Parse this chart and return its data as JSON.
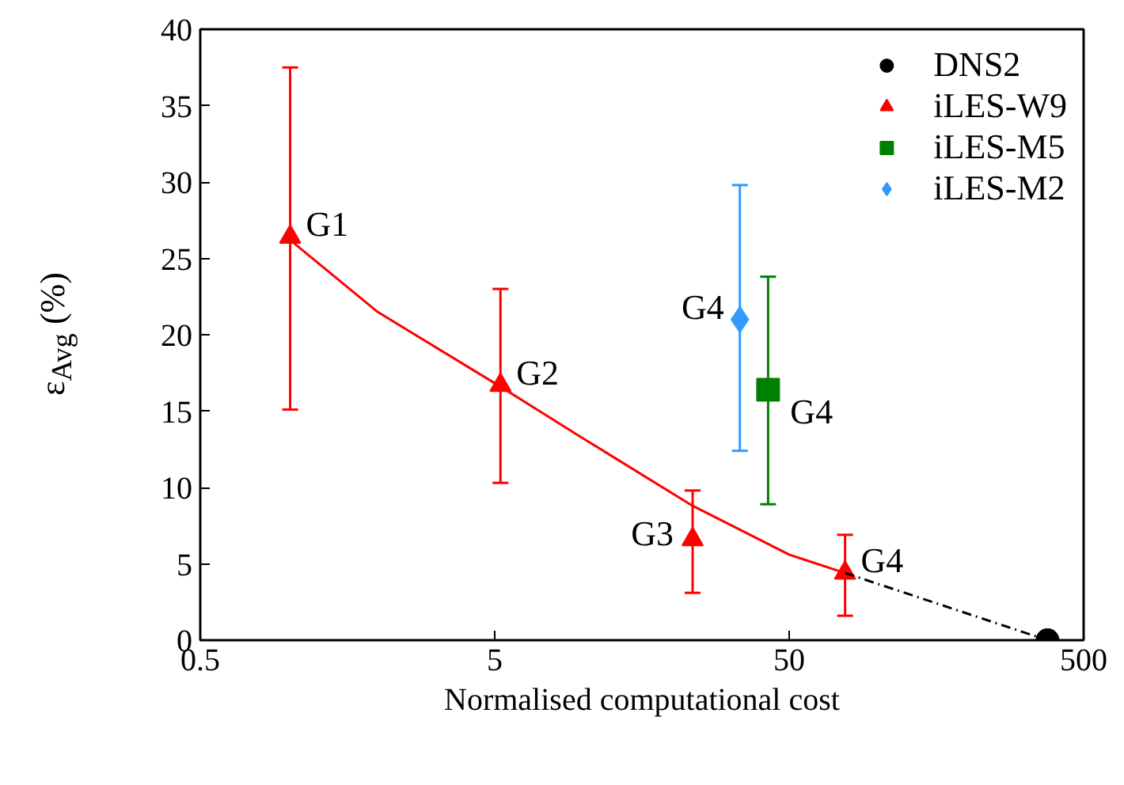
{
  "chart_data": {
    "type": "scatter",
    "xlabel": "Normalised computational cost",
    "ylabel": "ε$_{Avg}$ (%)",
    "log": "x",
    "xlim": [
      0.5,
      500
    ],
    "xticks": [
      0.5,
      5,
      50,
      500
    ],
    "ylim": [
      0,
      40
    ],
    "yticks": [
      0,
      5,
      10,
      15,
      20,
      25,
      30,
      35,
      40
    ],
    "legend": "top right",
    "series": [
      {
        "name": "DNS2",
        "marker": "circle",
        "color": "#000000",
        "x": [
          377
        ],
        "values": [
          0
        ]
      },
      {
        "name": "iLES-W9",
        "marker": "triangle",
        "color": "#ff0000",
        "x": [
          1.01,
          5.23,
          23.5,
          77.4
        ],
        "values": [
          26.4,
          16.7,
          6.6,
          4.4
        ],
        "errors": [
          [
            15.1,
            37.5
          ],
          [
            10.3,
            23.0
          ],
          [
            3.1,
            9.8
          ],
          [
            1.6,
            6.9
          ]
        ]
      },
      {
        "name": "iLES-M5",
        "marker": "square",
        "color": "#008000",
        "x": [
          42.4
        ],
        "values": [
          16.4
        ],
        "errors": [
          [
            8.9,
            23.8
          ]
        ]
      },
      {
        "name": "iLES-M2",
        "marker": "diamond",
        "color": "#3399ff",
        "x": [
          34
        ],
        "values": [
          21.0
        ],
        "errors": [
          [
            12.4,
            29.8
          ]
        ]
      },
      {
        "type": "line",
        "color": "#ff0000",
        "line_style": "solid",
        "x": [
          1.01,
          2,
          5.23,
          10,
          23.5,
          50,
          77.4
        ],
        "values": [
          26.2,
          21.5,
          16.6,
          13.2,
          8.8,
          5.6,
          4.4
        ]
      },
      {
        "type": "line",
        "color": "#000000",
        "line_style": "dashed",
        "x": [
          77.4,
          377
        ],
        "values": [
          4.4,
          0
        ]
      }
    ],
    "annotations": [
      {
        "text": "G1",
        "x": 1.01,
        "y": 26.4
      },
      {
        "text": "G2",
        "x": 5.23,
        "y": 16.7
      },
      {
        "text": "G3",
        "x": 23.5,
        "y": 6.6
      },
      {
        "text": "G4",
        "x": 77.4,
        "y": 4.4
      },
      {
        "text": "G4",
        "x": 34,
        "y": 21.0
      },
      {
        "text": "G4",
        "x": 42.4,
        "y": 16.4
      }
    ]
  }
}
